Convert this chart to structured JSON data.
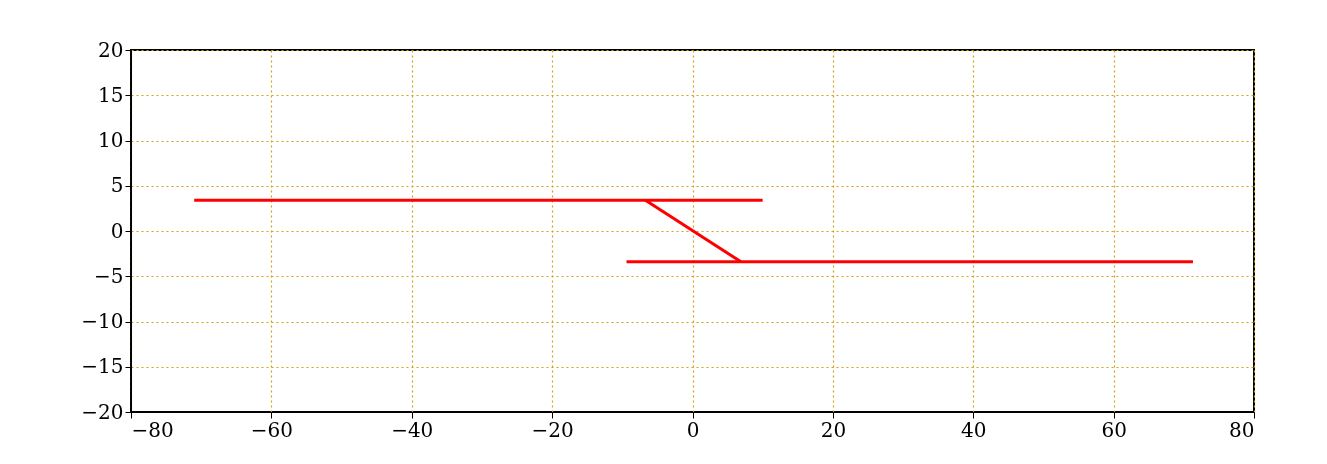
{
  "chart_data": {
    "type": "line",
    "series": [
      {
        "color": "#ff0000",
        "x": [
          -71,
          10
        ],
        "values": [
          3.4,
          3.4
        ]
      },
      {
        "color": "#ff0000",
        "x": [
          -6.7,
          6.9
        ],
        "values": [
          3.4,
          -3.4
        ]
      },
      {
        "color": "#ff0000",
        "x": [
          -9.4,
          71.3
        ],
        "values": [
          -3.4,
          -3.4
        ]
      }
    ],
    "xlim": [
      -80,
      80
    ],
    "ylim": [
      -20,
      20
    ],
    "xticks": [
      {
        "value": -80,
        "label": "−80"
      },
      {
        "value": -60,
        "label": "−60"
      },
      {
        "value": -40,
        "label": "−40"
      },
      {
        "value": -20,
        "label": "−20"
      },
      0,
      20,
      40,
      60,
      80
    ],
    "yticks": [
      {
        "value": -20,
        "label": "−20"
      },
      {
        "value": -15,
        "label": "−15"
      },
      {
        "value": -10,
        "label": "−10"
      },
      {
        "value": -5,
        "label": "−5"
      },
      0,
      5,
      10,
      15,
      20
    ],
    "grid": true,
    "legend": false,
    "marker": "none",
    "line_style": "solid"
  }
}
